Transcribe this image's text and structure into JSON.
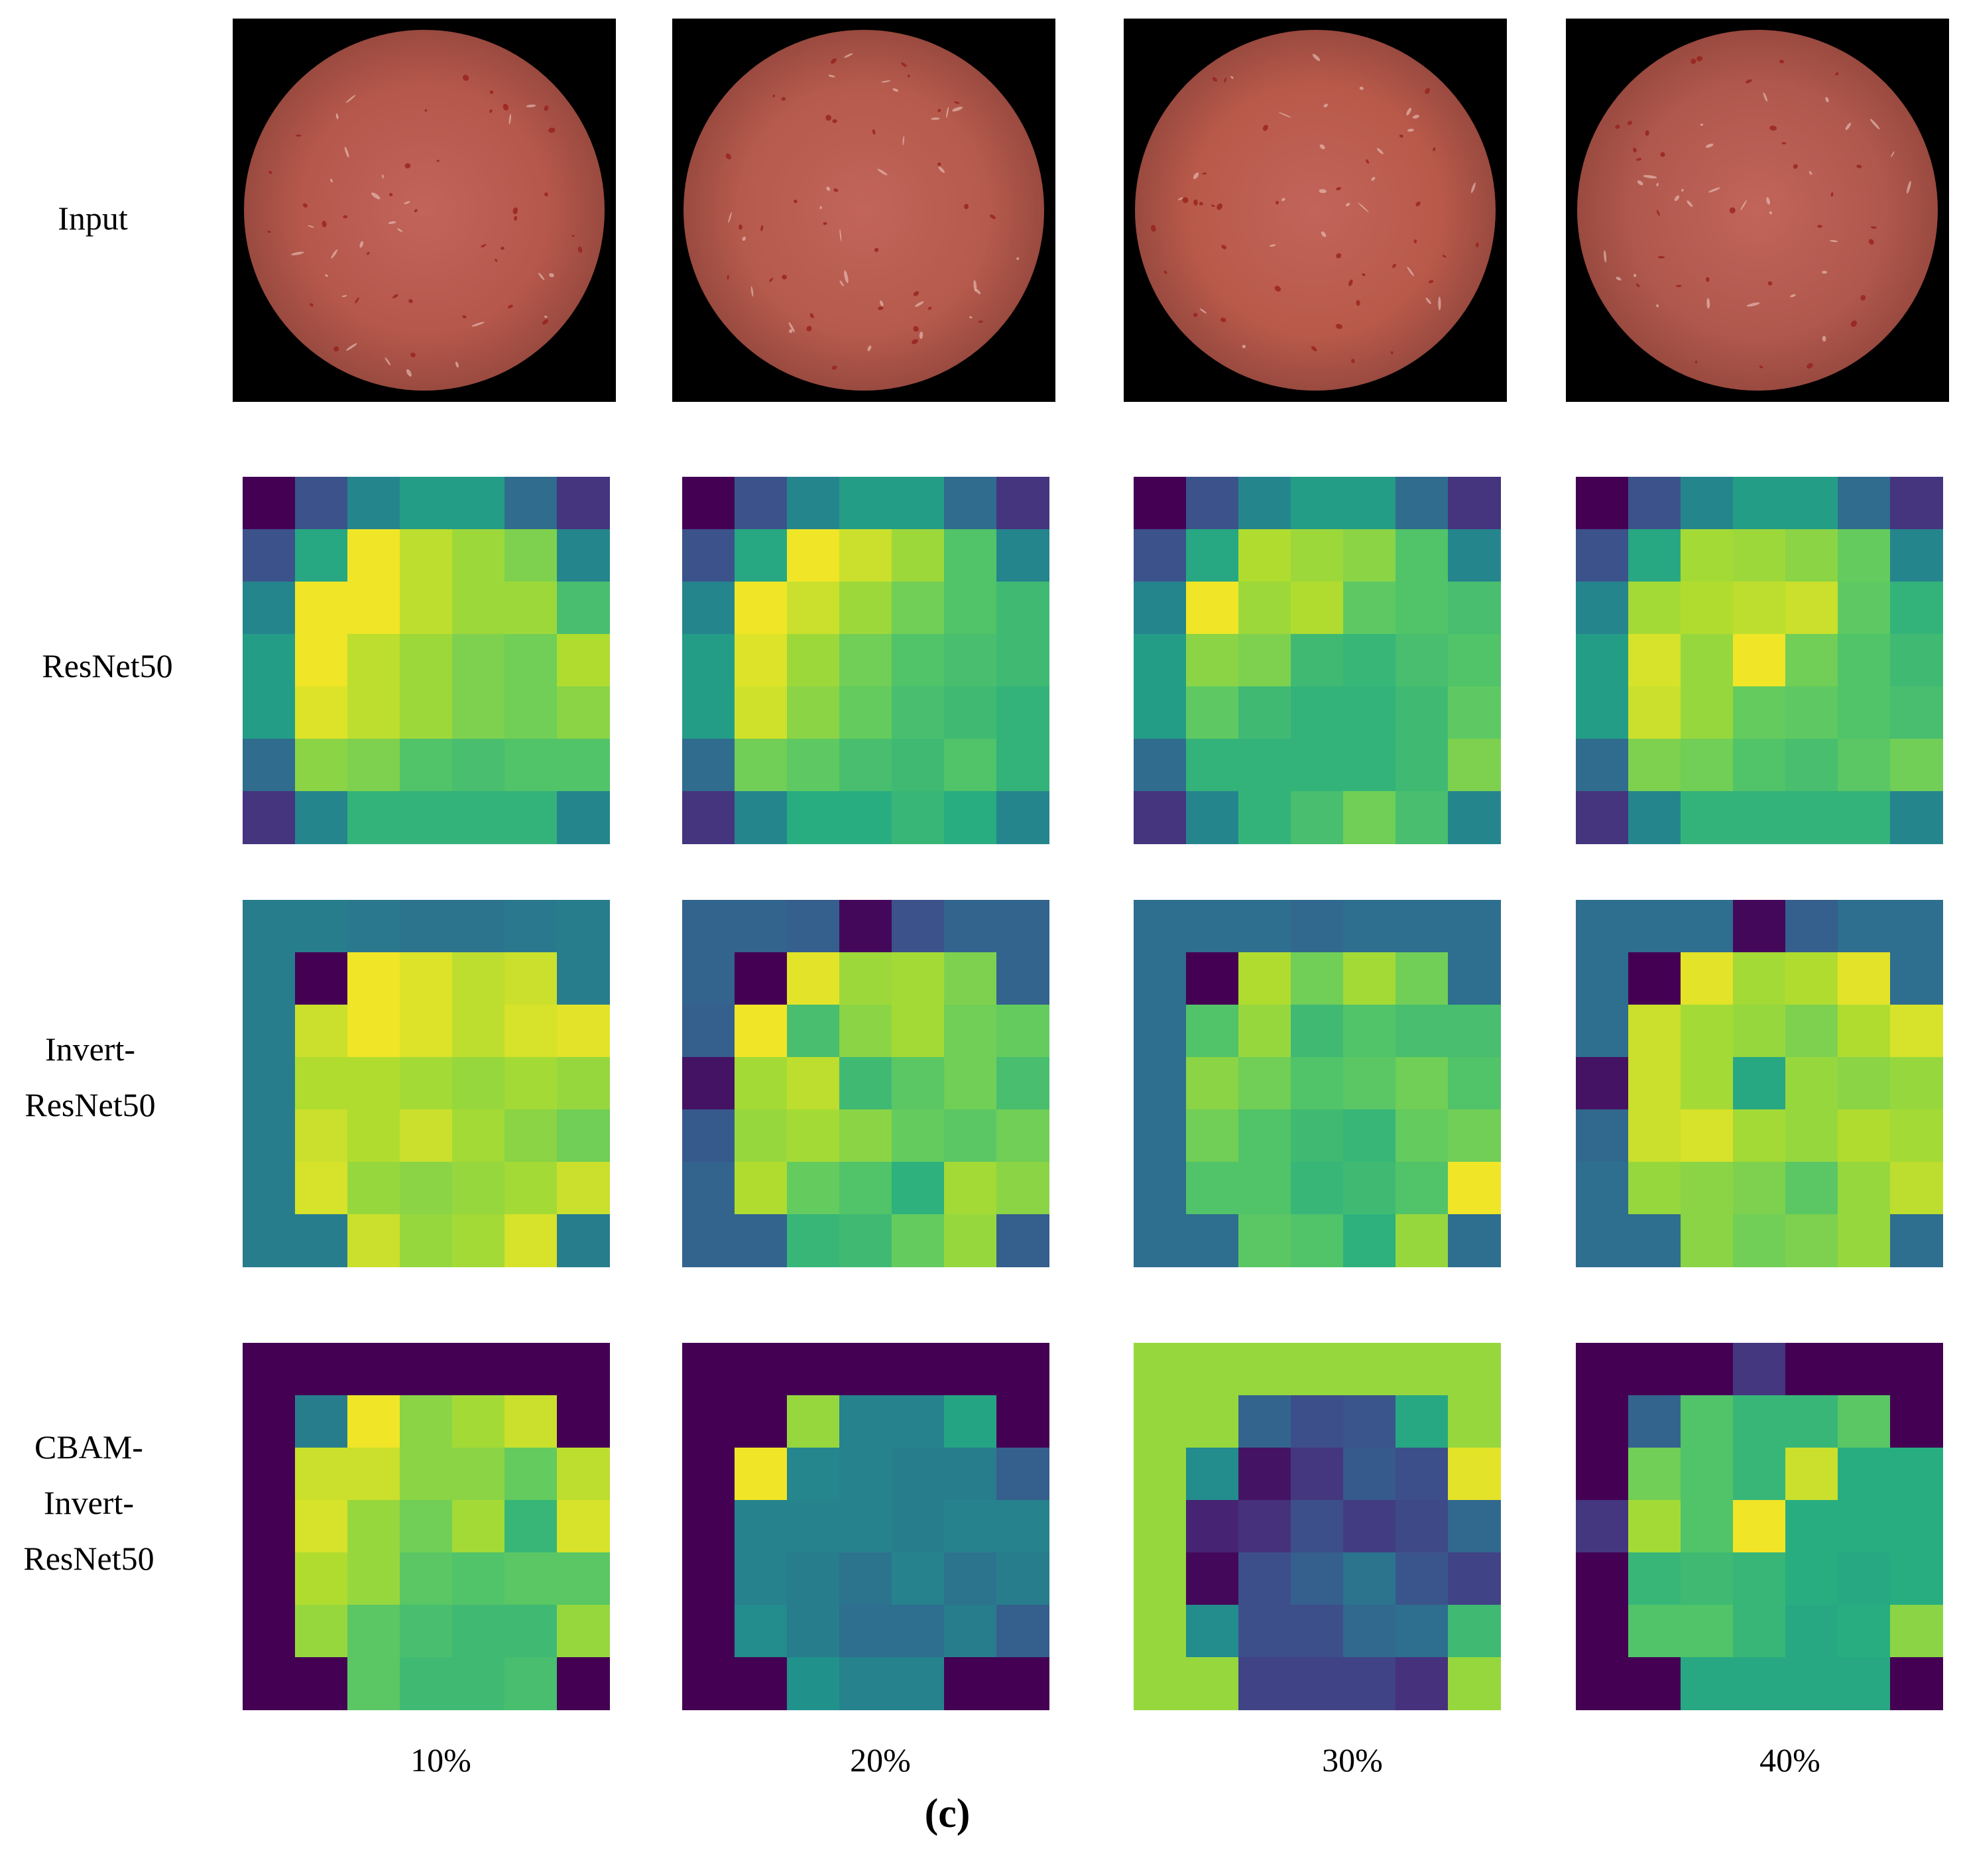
{
  "row_labels": [
    "Input",
    "ResNet50",
    "Invert-\nResNet50",
    "CBAM-\nInvert-\nResNet50"
  ],
  "column_labels": [
    "10%",
    "20%",
    "30%",
    "40%"
  ],
  "caption": "(c)",
  "input_images": [
    {
      "description": "meat-sample-10",
      "base_color": "#b5574b"
    },
    {
      "description": "meat-sample-20",
      "base_color": "#b55a4c"
    },
    {
      "description": "meat-sample-30",
      "base_color": "#b8594a"
    },
    {
      "description": "meat-sample-40",
      "base_color": "#b0584d"
    }
  ],
  "heatmaps": {
    "ResNet50": [
      [
        [
          0,
          0.25,
          0.45,
          0.55,
          0.55,
          0.35,
          0.15
        ],
        [
          0.25,
          0.6,
          0.98,
          0.9,
          0.85,
          0.8,
          0.45
        ],
        [
          0.45,
          0.98,
          0.98,
          0.9,
          0.85,
          0.85,
          0.7
        ],
        [
          0.55,
          0.98,
          0.9,
          0.85,
          0.8,
          0.78,
          0.88
        ],
        [
          0.55,
          0.95,
          0.9,
          0.85,
          0.8,
          0.78,
          0.82
        ],
        [
          0.35,
          0.82,
          0.8,
          0.72,
          0.7,
          0.72,
          0.72
        ],
        [
          0.15,
          0.45,
          0.65,
          0.65,
          0.65,
          0.65,
          0.45
        ]
      ],
      [
        [
          0,
          0.25,
          0.45,
          0.55,
          0.55,
          0.35,
          0.15
        ],
        [
          0.25,
          0.6,
          0.98,
          0.92,
          0.85,
          0.72,
          0.45
        ],
        [
          0.45,
          0.98,
          0.92,
          0.85,
          0.78,
          0.72,
          0.68
        ],
        [
          0.55,
          0.95,
          0.85,
          0.78,
          0.72,
          0.7,
          0.68
        ],
        [
          0.55,
          0.93,
          0.82,
          0.76,
          0.7,
          0.68,
          0.65
        ],
        [
          0.35,
          0.78,
          0.75,
          0.7,
          0.68,
          0.72,
          0.65
        ],
        [
          0.15,
          0.45,
          0.62,
          0.62,
          0.66,
          0.62,
          0.45
        ]
      ],
      [
        [
          0,
          0.25,
          0.45,
          0.55,
          0.55,
          0.35,
          0.15
        ],
        [
          0.25,
          0.6,
          0.88,
          0.85,
          0.82,
          0.72,
          0.45
        ],
        [
          0.45,
          0.98,
          0.85,
          0.88,
          0.75,
          0.72,
          0.7
        ],
        [
          0.55,
          0.82,
          0.8,
          0.68,
          0.66,
          0.7,
          0.72
        ],
        [
          0.55,
          0.75,
          0.68,
          0.65,
          0.65,
          0.68,
          0.75
        ],
        [
          0.35,
          0.65,
          0.65,
          0.65,
          0.65,
          0.68,
          0.8
        ],
        [
          0.15,
          0.45,
          0.65,
          0.7,
          0.78,
          0.7,
          0.45
        ]
      ],
      [
        [
          0,
          0.25,
          0.45,
          0.55,
          0.55,
          0.35,
          0.15
        ],
        [
          0.25,
          0.6,
          0.86,
          0.85,
          0.82,
          0.76,
          0.45
        ],
        [
          0.45,
          0.86,
          0.88,
          0.9,
          0.92,
          0.75,
          0.65
        ],
        [
          0.55,
          0.94,
          0.84,
          0.98,
          0.78,
          0.72,
          0.68
        ],
        [
          0.55,
          0.92,
          0.84,
          0.76,
          0.75,
          0.72,
          0.7
        ],
        [
          0.35,
          0.8,
          0.78,
          0.72,
          0.7,
          0.74,
          0.78
        ],
        [
          0.15,
          0.45,
          0.65,
          0.65,
          0.65,
          0.65,
          0.45
        ]
      ]
    ],
    "Invert-ResNet50": [
      [
        [
          0.42,
          0.42,
          0.4,
          0.38,
          0.38,
          0.4,
          0.42
        ],
        [
          0.42,
          0,
          0.98,
          0.95,
          0.9,
          0.92,
          0.42
        ],
        [
          0.42,
          0.92,
          0.98,
          0.95,
          0.9,
          0.94,
          0.96
        ],
        [
          0.42,
          0.88,
          0.88,
          0.86,
          0.84,
          0.86,
          0.84
        ],
        [
          0.42,
          0.92,
          0.88,
          0.92,
          0.86,
          0.82,
          0.78
        ],
        [
          0.42,
          0.94,
          0.84,
          0.82,
          0.84,
          0.86,
          0.92
        ],
        [
          0.42,
          0.42,
          0.92,
          0.84,
          0.86,
          0.94,
          0.42
        ]
      ],
      [
        [
          0.32,
          0.32,
          0.3,
          0.02,
          0.25,
          0.32,
          0.32
        ],
        [
          0.32,
          0,
          0.96,
          0.85,
          0.86,
          0.8,
          0.32
        ],
        [
          0.3,
          0.98,
          0.7,
          0.82,
          0.86,
          0.78,
          0.76
        ],
        [
          0.05,
          0.86,
          0.9,
          0.68,
          0.74,
          0.78,
          0.7
        ],
        [
          0.28,
          0.84,
          0.86,
          0.82,
          0.76,
          0.74,
          0.78
        ],
        [
          0.32,
          0.88,
          0.76,
          0.72,
          0.64,
          0.86,
          0.82
        ],
        [
          0.32,
          0.32,
          0.66,
          0.68,
          0.76,
          0.84,
          0.3
        ]
      ],
      [
        [
          0.36,
          0.36,
          0.36,
          0.34,
          0.36,
          0.36,
          0.36
        ],
        [
          0.36,
          0,
          0.88,
          0.78,
          0.86,
          0.78,
          0.36
        ],
        [
          0.36,
          0.72,
          0.84,
          0.68,
          0.72,
          0.7,
          0.7
        ],
        [
          0.36,
          0.82,
          0.78,
          0.72,
          0.74,
          0.78,
          0.72
        ],
        [
          0.36,
          0.78,
          0.72,
          0.68,
          0.66,
          0.76,
          0.78
        ],
        [
          0.36,
          0.72,
          0.72,
          0.66,
          0.68,
          0.72,
          0.98
        ],
        [
          0.36,
          0.36,
          0.74,
          0.72,
          0.64,
          0.84,
          0.36
        ]
      ],
      [
        [
          0.36,
          0.36,
          0.36,
          0.02,
          0.3,
          0.36,
          0.36
        ],
        [
          0.36,
          0,
          0.96,
          0.86,
          0.88,
          0.96,
          0.36
        ],
        [
          0.36,
          0.92,
          0.86,
          0.84,
          0.8,
          0.88,
          0.94
        ],
        [
          0.05,
          0.92,
          0.86,
          0.6,
          0.84,
          0.82,
          0.84
        ],
        [
          0.34,
          0.92,
          0.94,
          0.86,
          0.84,
          0.88,
          0.86
        ],
        [
          0.36,
          0.84,
          0.82,
          0.8,
          0.74,
          0.84,
          0.9
        ],
        [
          0.36,
          0.36,
          0.82,
          0.78,
          0.8,
          0.84,
          0.36
        ]
      ]
    ],
    "CBAM-Invert-ResNet50": [
      [
        [
          0,
          0,
          0,
          0,
          0,
          0,
          0
        ],
        [
          0,
          0.42,
          0.98,
          0.82,
          0.86,
          0.92,
          0
        ],
        [
          0,
          0.92,
          0.92,
          0.82,
          0.82,
          0.76,
          0.9
        ],
        [
          0,
          0.94,
          0.84,
          0.78,
          0.86,
          0.66,
          0.94
        ],
        [
          0,
          0.88,
          0.84,
          0.74,
          0.72,
          0.74,
          0.74
        ],
        [
          0,
          0.84,
          0.74,
          0.7,
          0.68,
          0.68,
          0.84
        ],
        [
          0,
          0,
          0.74,
          0.68,
          0.68,
          0.7,
          0
        ]
      ],
      [
        [
          0,
          0,
          0,
          0,
          0,
          0,
          0
        ],
        [
          0,
          0,
          0.84,
          0.44,
          0.44,
          0.58,
          0
        ],
        [
          0,
          0.98,
          0.46,
          0.44,
          0.42,
          0.42,
          0.3
        ],
        [
          0,
          0.44,
          0.44,
          0.44,
          0.42,
          0.44,
          0.44
        ],
        [
          0,
          0.44,
          0.42,
          0.38,
          0.44,
          0.38,
          0.42
        ],
        [
          0,
          0.48,
          0.42,
          0.36,
          0.36,
          0.42,
          0.3
        ],
        [
          0,
          0,
          0.5,
          0.44,
          0.44,
          0,
          0
        ]
      ],
      [
        [
          0.84,
          0.84,
          0.84,
          0.84,
          0.84,
          0.84,
          0.84
        ],
        [
          0.84,
          0.84,
          0.32,
          0.24,
          0.26,
          0.6,
          0.84
        ],
        [
          0.84,
          0.48,
          0.05,
          0.16,
          0.28,
          0.24,
          0.96
        ],
        [
          0.84,
          0.1,
          0.14,
          0.24,
          0.18,
          0.22,
          0.34
        ],
        [
          0.84,
          0.02,
          0.24,
          0.3,
          0.38,
          0.26,
          0.2
        ],
        [
          0.84,
          0.48,
          0.24,
          0.24,
          0.34,
          0.36,
          0.68
        ],
        [
          0.84,
          0.84,
          0.2,
          0.2,
          0.2,
          0.14,
          0.84
        ]
      ],
      [
        [
          0,
          0,
          0,
          0.16,
          0,
          0,
          0
        ],
        [
          0,
          0.32,
          0.72,
          0.66,
          0.66,
          0.74,
          0
        ],
        [
          0,
          0.78,
          0.72,
          0.66,
          0.92,
          0.62,
          0.62
        ],
        [
          0.16,
          0.86,
          0.72,
          0.98,
          0.62,
          0.62,
          0.62
        ],
        [
          0,
          0.66,
          0.68,
          0.66,
          0.62,
          0.6,
          0.62
        ],
        [
          0,
          0.72,
          0.72,
          0.66,
          0.6,
          0.62,
          0.82
        ],
        [
          0,
          0,
          0.6,
          0.6,
          0.6,
          0.6,
          0
        ]
      ]
    ]
  },
  "colors": {
    "viridis_stops": [
      "#440154",
      "#472d7b",
      "#3b528b",
      "#2c728e",
      "#21918c",
      "#28ae80",
      "#5ec962",
      "#addc30",
      "#fde725"
    ],
    "background": "#ffffff"
  }
}
